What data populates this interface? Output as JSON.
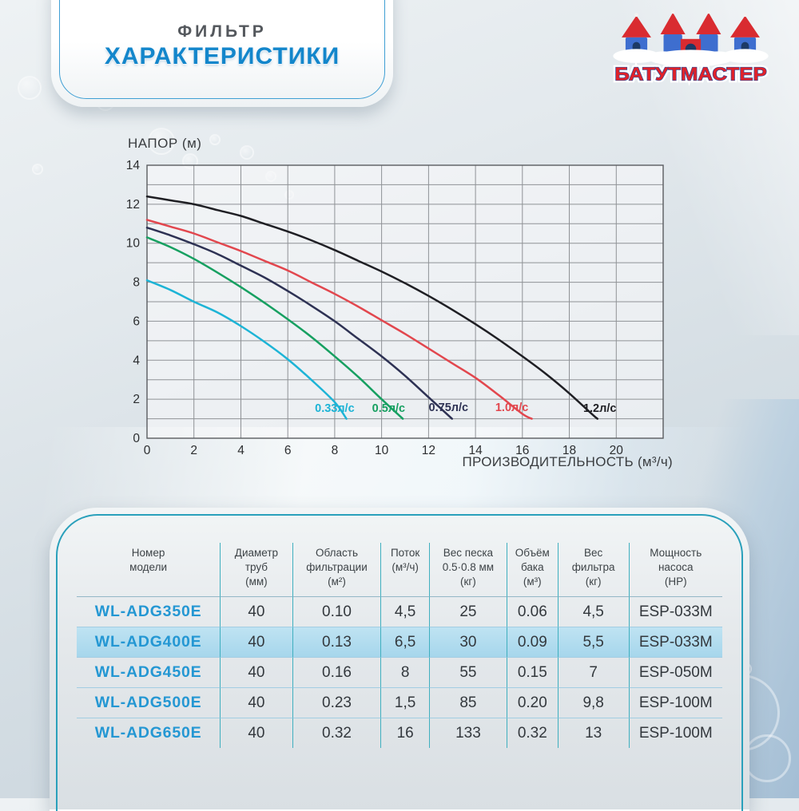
{
  "header": {
    "subtitle": "ФИЛЬТР",
    "title": "ХАРАКТЕРИСТИКИ"
  },
  "logo": {
    "name": "БАТУТМАСТЕР"
  },
  "chart_data": {
    "type": "line",
    "title": "",
    "ylabel": "НАПОР (м)",
    "xlabel": "ПРОИЗВОДИТЕЛЬНОСТЬ (м³/ч)",
    "xlim": [
      0,
      22
    ],
    "ylim": [
      0,
      14
    ],
    "x_ticks": [
      0,
      2,
      4,
      6,
      8,
      10,
      12,
      14,
      16,
      18,
      20
    ],
    "y_ticks": [
      0,
      2,
      4,
      6,
      8,
      10,
      12,
      14
    ],
    "grid": {
      "x_step": 2,
      "y_step": 1,
      "color": "#8f9296",
      "border_color": "#5a5c60"
    },
    "legend_position": "inside-bottom",
    "series": [
      {
        "name": "0.33л/с",
        "color": "#1db4d6",
        "label_at": [
          8.0,
          1.35
        ],
        "points": [
          [
            0,
            8.1
          ],
          [
            1,
            7.6
          ],
          [
            2,
            7.0
          ],
          [
            3,
            6.45
          ],
          [
            4,
            5.75
          ],
          [
            5,
            4.95
          ],
          [
            6,
            4.05
          ],
          [
            7,
            3.0
          ],
          [
            8,
            1.85
          ],
          [
            8.5,
            1.0
          ]
        ]
      },
      {
        "name": "0.5л/с",
        "color": "#17a061",
        "label_at": [
          10.3,
          1.35
        ],
        "points": [
          [
            0,
            10.3
          ],
          [
            1,
            9.8
          ],
          [
            2,
            9.2
          ],
          [
            3,
            8.5
          ],
          [
            4,
            7.75
          ],
          [
            5,
            6.95
          ],
          [
            6,
            6.1
          ],
          [
            7,
            5.2
          ],
          [
            8,
            4.2
          ],
          [
            9,
            3.15
          ],
          [
            10,
            2.0
          ],
          [
            10.9,
            1.0
          ]
        ]
      },
      {
        "name": "0.75л/с",
        "color": "#2e3254",
        "label_at": [
          12.85,
          1.4
        ],
        "points": [
          [
            0,
            10.8
          ],
          [
            1,
            10.4
          ],
          [
            2,
            9.95
          ],
          [
            3,
            9.45
          ],
          [
            4,
            8.85
          ],
          [
            5,
            8.25
          ],
          [
            6,
            7.55
          ],
          [
            7,
            6.8
          ],
          [
            8,
            6.0
          ],
          [
            9,
            5.1
          ],
          [
            10,
            4.2
          ],
          [
            11,
            3.2
          ],
          [
            12,
            2.1
          ],
          [
            13,
            1.0
          ]
        ]
      },
      {
        "name": "1.0л/с",
        "color": "#e2474e",
        "label_at": [
          15.55,
          1.4
        ],
        "points": [
          [
            0,
            11.2
          ],
          [
            1,
            10.85
          ],
          [
            2,
            10.5
          ],
          [
            3,
            10.05
          ],
          [
            4,
            9.6
          ],
          [
            5,
            9.1
          ],
          [
            6,
            8.6
          ],
          [
            7,
            8.0
          ],
          [
            8,
            7.4
          ],
          [
            9,
            6.75
          ],
          [
            10,
            6.05
          ],
          [
            11,
            5.35
          ],
          [
            12,
            4.6
          ],
          [
            13,
            3.85
          ],
          [
            14,
            3.1
          ],
          [
            15,
            2.2
          ],
          [
            16,
            1.25
          ],
          [
            16.4,
            1.0
          ]
        ]
      },
      {
        "name": "1.2л/с",
        "color": "#1f1f24",
        "label_at": [
          19.3,
          1.35
        ],
        "points": [
          [
            0,
            12.4
          ],
          [
            1,
            12.2
          ],
          [
            2,
            12.0
          ],
          [
            3,
            11.7
          ],
          [
            4,
            11.4
          ],
          [
            5,
            11.0
          ],
          [
            6,
            10.6
          ],
          [
            7,
            10.15
          ],
          [
            8,
            9.65
          ],
          [
            9,
            9.1
          ],
          [
            10,
            8.55
          ],
          [
            11,
            7.95
          ],
          [
            12,
            7.3
          ],
          [
            13,
            6.6
          ],
          [
            14,
            5.85
          ],
          [
            15,
            5.05
          ],
          [
            16,
            4.2
          ],
          [
            17,
            3.3
          ],
          [
            18,
            2.3
          ],
          [
            19,
            1.2
          ],
          [
            19.2,
            1.0
          ]
        ]
      }
    ]
  },
  "table": {
    "headers": [
      "Номер\nмодели",
      "Диаметр\nтруб\n(мм)",
      "Область\nфильтрации\n(м²)",
      "Поток\n(м³/ч)",
      "Вес песка\n0.5·0.8 мм\n(кг)",
      "Объём\nбака\n(м³)",
      "Вес\nфильтра\n(кг)",
      "Мощность\nнасоса\n(HP)"
    ],
    "rows": [
      [
        "WL-ADG350E",
        "40",
        "0.10",
        "4,5",
        "25",
        "0.06",
        "4,5",
        "ESP-033M"
      ],
      [
        "WL-ADG400E",
        "40",
        "0.13",
        "6,5",
        "30",
        "0.09",
        "5,5",
        "ESP-033M"
      ],
      [
        "WL-ADG450E",
        "40",
        "0.16",
        "8",
        "55",
        "0.15",
        "7",
        "ESP-050M"
      ],
      [
        "WL-ADG500E",
        "40",
        "0.23",
        "1,5",
        "85",
        "0.20",
        "9,8",
        "ESP-100M"
      ],
      [
        "WL-ADG650E",
        "40",
        "0.32",
        "16",
        "133",
        "0.32",
        "13",
        "ESP-100M"
      ]
    ],
    "highlighted_row": 1
  },
  "colors": {
    "accent_blue": "#1386cb",
    "table_border_teal": "#2aa0bb",
    "column_separator": "#3fafbf",
    "row_separator": "#a3cde2",
    "model_text_blue": "#2497d3",
    "highlight_row_bg": "#aed9ec",
    "logo_red": "#d92b30",
    "logo_blue": "#3e6ecf"
  }
}
